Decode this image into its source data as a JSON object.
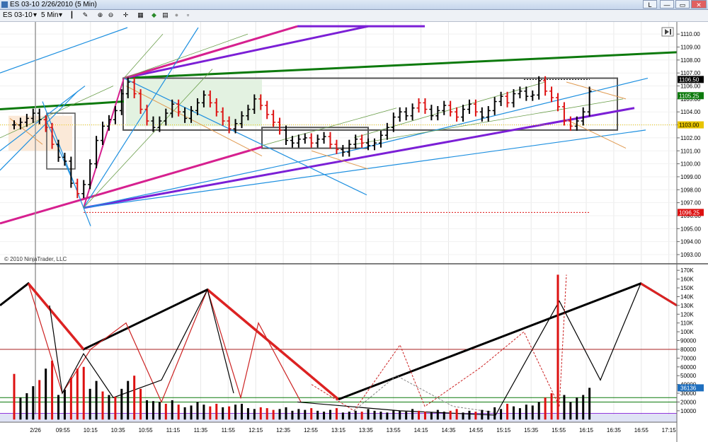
{
  "window": {
    "title": "ES 03-10  2/26/2010 (5 Min)",
    "lock_label": "L"
  },
  "toolbar": {
    "instrument": "ES 03-10",
    "interval": "5 Min"
  },
  "icons": [
    "bar-chart-icon",
    "pencil-icon",
    "zoom-in-icon",
    "zoom-out-icon",
    "crosshair-icon",
    "properties-icon",
    "strategy-icon",
    "templates-icon",
    "color-icon",
    "blank-icon"
  ],
  "copyright": "© 2010 NinjaTrader, LLC",
  "colors": {
    "up_bar": "#000000",
    "down_bar": "#dd1111",
    "green_trend": "#0d7a0d",
    "purple": "#7b1fd6",
    "magenta": "#d6208f",
    "blue": "#1e90e0"
  },
  "chart_data": [
    {
      "type": "bar",
      "title": "ES 03-10 2/26/2010 (5 Min)",
      "x_tick_labels": [
        "2/26",
        "09:55",
        "10:15",
        "10:35",
        "10:55",
        "11:15",
        "11:35",
        "11:55",
        "12:15",
        "12:35",
        "12:55",
        "13:15",
        "13:35",
        "13:55",
        "14:15",
        "14:35",
        "14:55",
        "15:15",
        "15:35",
        "15:55",
        "16:15",
        "16:35",
        "16:55",
        "17:15"
      ],
      "y_ticks": [
        1093,
        1094,
        1095,
        1096,
        1097,
        1098,
        1099,
        1100,
        1101,
        1102,
        1103,
        1104,
        1105,
        1106,
        1107,
        1108,
        1109,
        1110
      ],
      "y_tick_labels": [
        "1093.00",
        "1094.00",
        "1095.00",
        "1096.00",
        "1097.00",
        "1098.00",
        "1099.00",
        "1100.00",
        "1101.00",
        "1102.00",
        "1103.00",
        "1104.00",
        "1105.00",
        "1106.00",
        "1107.00",
        "1108.00",
        "1109.00",
        "1110.00"
      ],
      "ylim": [
        1092.4,
        1110.5
      ],
      "price_markers": [
        {
          "label": "1106.50",
          "value": 1106.5,
          "color": "#000000"
        },
        {
          "label": "1105.25",
          "value": 1105.25,
          "color": "#0d7a0d"
        },
        {
          "label": "1103.00",
          "value": 1103.0,
          "color": "#e8c400"
        },
        {
          "label": "1096.25",
          "value": 1096.25,
          "color": "#dd1111"
        }
      ],
      "closes": [
        1103,
        1103.2,
        1103.5,
        1103.9,
        1103.4,
        1102.8,
        1101.5,
        1100.5,
        1100.2,
        1098.5,
        1097.7,
        1098.4,
        1100.0,
        1101.8,
        1102.9,
        1103.4,
        1104.1,
        1105.4,
        1106.3,
        1105.4,
        1104.2,
        1103.3,
        1102.8,
        1103.3,
        1103.9,
        1104.6,
        1104.0,
        1103.5,
        1104.1,
        1104.7,
        1105.3,
        1104.7,
        1104.0,
        1103.3,
        1102.7,
        1103.1,
        1103.7,
        1104.2,
        1105.0,
        1104.5,
        1103.8,
        1103.2,
        1102.6,
        1101.8,
        1101.6,
        1101.9,
        1102.0,
        1101.6,
        1101.9,
        1102.1,
        1101.5,
        1101.1,
        1100.9,
        1101.5,
        1101.9,
        1101.6,
        1101.4,
        1101.6,
        1102.2,
        1102.8,
        1103.6,
        1104.0,
        1103.7,
        1104.3,
        1104.7,
        1104.2,
        1103.7,
        1104.1,
        1104.5,
        1104.0,
        1103.6,
        1104.2,
        1104.6,
        1104.0,
        1103.6,
        1104.1,
        1104.8,
        1105.2,
        1104.7,
        1105.4,
        1105.6,
        1105.2,
        1105.3,
        1106.4,
        1105.6,
        1105.1,
        1104.4,
        1103.3,
        1102.9,
        1103.3,
        1104.0,
        1105.6
      ],
      "down_bars": [
        5,
        6,
        10,
        19,
        20,
        21,
        26,
        31,
        32,
        33,
        34,
        39,
        40,
        41,
        42,
        47,
        50,
        51,
        55,
        64,
        65,
        69,
        70,
        73,
        78,
        84,
        85,
        86,
        87,
        88
      ]
    },
    {
      "type": "bar",
      "title": "",
      "y_tick_labels": [
        "10000",
        "20000",
        "30000",
        "40000",
        "50000",
        "60000",
        "70000",
        "80000",
        "90000",
        "100K",
        "110K",
        "120K",
        "130K",
        "140K",
        "150K",
        "160K",
        "170K"
      ],
      "ylim": [
        -3000,
        175000
      ],
      "last_value_label": "36136",
      "volumes": [
        52000,
        25000,
        30000,
        38000,
        45000,
        58000,
        67000,
        28000,
        34000,
        48000,
        58000,
        60000,
        35000,
        44000,
        32000,
        28000,
        26000,
        35000,
        44000,
        50000,
        35000,
        22000,
        21000,
        20000,
        18000,
        22000,
        17000,
        14000,
        16000,
        20000,
        17000,
        15000,
        18000,
        14000,
        15000,
        17000,
        18000,
        13000,
        12000,
        14000,
        13000,
        11000,
        12000,
        14000,
        10000,
        12000,
        11000,
        13000,
        10000,
        9000,
        11000,
        13000,
        8000,
        9000,
        10000,
        9000,
        12000,
        10000,
        9000,
        8000,
        11000,
        10000,
        9000,
        12000,
        10000,
        9000,
        8000,
        11000,
        9000,
        10000,
        12000,
        8000,
        10000,
        9000,
        11000,
        10000,
        14000,
        12000,
        18000,
        15000,
        13000,
        17000,
        16000,
        20000,
        25000,
        30000,
        165000,
        28000,
        20000,
        25000,
        28000,
        36136
      ],
      "red_volume_bars": [
        0,
        4,
        6,
        9,
        10,
        11,
        14,
        16,
        19,
        20,
        24,
        26,
        31,
        32,
        34,
        39,
        40,
        41,
        47,
        51,
        55,
        64,
        65,
        69,
        70,
        73,
        78,
        84,
        85,
        86
      ]
    }
  ]
}
